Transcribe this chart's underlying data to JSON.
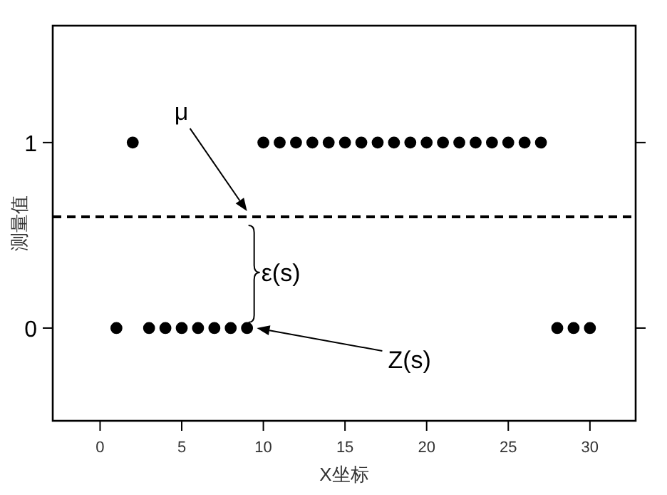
{
  "chart_data": {
    "type": "scatter",
    "xlabel": "X坐标",
    "ylabel": "测量值",
    "x": [
      1,
      2,
      3,
      4,
      5,
      6,
      7,
      8,
      9,
      10,
      11,
      12,
      13,
      14,
      15,
      16,
      17,
      18,
      19,
      20,
      21,
      22,
      23,
      24,
      25,
      26,
      27,
      28,
      29,
      30
    ],
    "series": [
      {
        "color": "#000000",
        "values": [
          0,
          1,
          0,
          0,
          0,
          0,
          0,
          0,
          0,
          1,
          1,
          1,
          1,
          1,
          1,
          1,
          1,
          1,
          1,
          1,
          1,
          1,
          1,
          1,
          1,
          1,
          1,
          0,
          0,
          0
        ]
      }
    ],
    "xlim": [
      -2.9,
      32.8
    ],
    "ylim": [
      -0.5,
      1.63
    ],
    "xticks": [
      0,
      5,
      10,
      15,
      20,
      25,
      30
    ],
    "yticks": [
      0,
      1
    ],
    "ref_lines": [
      {
        "axis": "y",
        "value": 0.6,
        "color": "#000000",
        "line_style": "dashed"
      }
    ],
    "annotations": [
      {
        "text": "μ",
        "x": 9,
        "y": 0.63
      },
      "ε(s)",
      {
        "text": "Z(s)",
        "x": 9.6,
        "y": 0
      }
    ],
    "marker": "circle",
    "grid": false
  }
}
